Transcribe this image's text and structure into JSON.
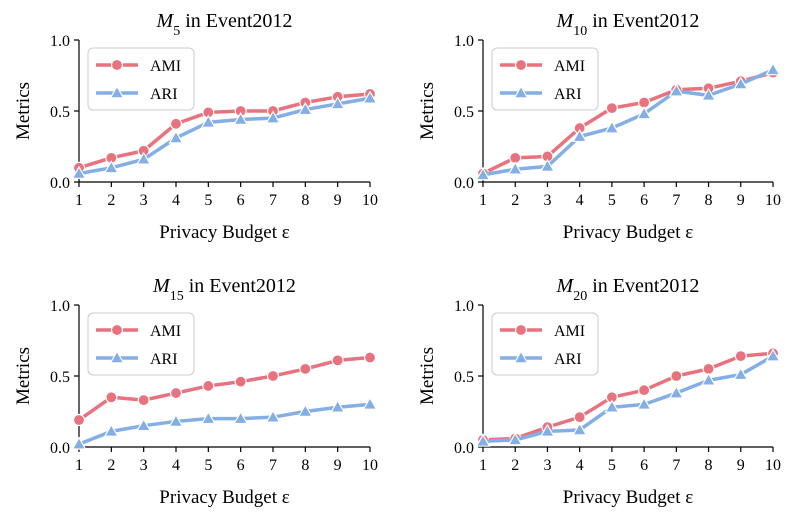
{
  "colors": {
    "ami": "#e8727e",
    "ari": "#83aee6"
  },
  "chart_data": [
    {
      "type": "line",
      "title_main": "M",
      "title_sub": "5",
      "title_rest": " in Event2012",
      "xlabel": "Privacy Budget ε",
      "ylabel": "Metrics",
      "x": [
        1,
        2,
        3,
        4,
        5,
        6,
        7,
        8,
        9,
        10
      ],
      "xlim": [
        1,
        10
      ],
      "ylim": [
        0,
        1
      ],
      "xticks": [
        "1",
        "2",
        "3",
        "4",
        "5",
        "6",
        "7",
        "8",
        "9",
        "10"
      ],
      "yticks": [
        "0.0",
        "0.5",
        "1.0"
      ],
      "legend_position": "top-left",
      "series": [
        {
          "name": "AMI",
          "marker": "circle",
          "values": [
            0.1,
            0.17,
            0.22,
            0.41,
            0.49,
            0.5,
            0.5,
            0.56,
            0.6,
            0.62
          ]
        },
        {
          "name": "ARI",
          "marker": "triangle",
          "values": [
            0.06,
            0.1,
            0.16,
            0.31,
            0.42,
            0.44,
            0.45,
            0.51,
            0.55,
            0.59
          ]
        }
      ]
    },
    {
      "type": "line",
      "title_main": "M",
      "title_sub": "10",
      "title_rest": " in Event2012",
      "xlabel": "Privacy Budget ε",
      "ylabel": "Metrics",
      "x": [
        1,
        2,
        3,
        4,
        5,
        6,
        7,
        8,
        9,
        10
      ],
      "xlim": [
        1,
        10
      ],
      "ylim": [
        0,
        1
      ],
      "xticks": [
        "1",
        "2",
        "3",
        "4",
        "5",
        "6",
        "7",
        "8",
        "9",
        "10"
      ],
      "yticks": [
        "0.0",
        "0.5",
        "1.0"
      ],
      "legend_position": "top-left",
      "series": [
        {
          "name": "AMI",
          "marker": "circle",
          "values": [
            0.06,
            0.17,
            0.18,
            0.38,
            0.52,
            0.56,
            0.65,
            0.66,
            0.71,
            0.77
          ]
        },
        {
          "name": "ARI",
          "marker": "triangle",
          "values": [
            0.05,
            0.09,
            0.11,
            0.32,
            0.38,
            0.48,
            0.64,
            0.61,
            0.69,
            0.79
          ]
        }
      ]
    },
    {
      "type": "line",
      "title_main": "M",
      "title_sub": "15",
      "title_rest": " in Event2012",
      "xlabel": "Privacy Budget ε",
      "ylabel": "Metrics",
      "x": [
        1,
        2,
        3,
        4,
        5,
        6,
        7,
        8,
        9,
        10
      ],
      "xlim": [
        1,
        10
      ],
      "ylim": [
        0,
        1
      ],
      "xticks": [
        "1",
        "2",
        "3",
        "4",
        "5",
        "6",
        "7",
        "8",
        "9",
        "10"
      ],
      "yticks": [
        "0.0",
        "0.5",
        "1.0"
      ],
      "legend_position": "top-left",
      "series": [
        {
          "name": "AMI",
          "marker": "circle",
          "values": [
            0.19,
            0.35,
            0.33,
            0.38,
            0.43,
            0.46,
            0.5,
            0.55,
            0.61,
            0.63
          ]
        },
        {
          "name": "ARI",
          "marker": "triangle",
          "values": [
            0.02,
            0.11,
            0.15,
            0.18,
            0.2,
            0.2,
            0.21,
            0.25,
            0.28,
            0.3
          ]
        }
      ]
    },
    {
      "type": "line",
      "title_main": "M",
      "title_sub": "20",
      "title_rest": " in Event2012",
      "xlabel": "Privacy Budget ε",
      "ylabel": "Metrics",
      "x": [
        1,
        2,
        3,
        4,
        5,
        6,
        7,
        8,
        9,
        10
      ],
      "xlim": [
        1,
        10
      ],
      "ylim": [
        0,
        1
      ],
      "xticks": [
        "1",
        "2",
        "3",
        "4",
        "5",
        "6",
        "7",
        "8",
        "9",
        "10"
      ],
      "yticks": [
        "0.0",
        "0.5",
        "1.0"
      ],
      "legend_position": "top-left",
      "series": [
        {
          "name": "AMI",
          "marker": "circle",
          "values": [
            0.05,
            0.06,
            0.14,
            0.21,
            0.35,
            0.4,
            0.5,
            0.55,
            0.64,
            0.66
          ]
        },
        {
          "name": "ARI",
          "marker": "triangle",
          "values": [
            0.04,
            0.05,
            0.11,
            0.12,
            0.28,
            0.3,
            0.38,
            0.47,
            0.51,
            0.64
          ]
        }
      ]
    }
  ]
}
